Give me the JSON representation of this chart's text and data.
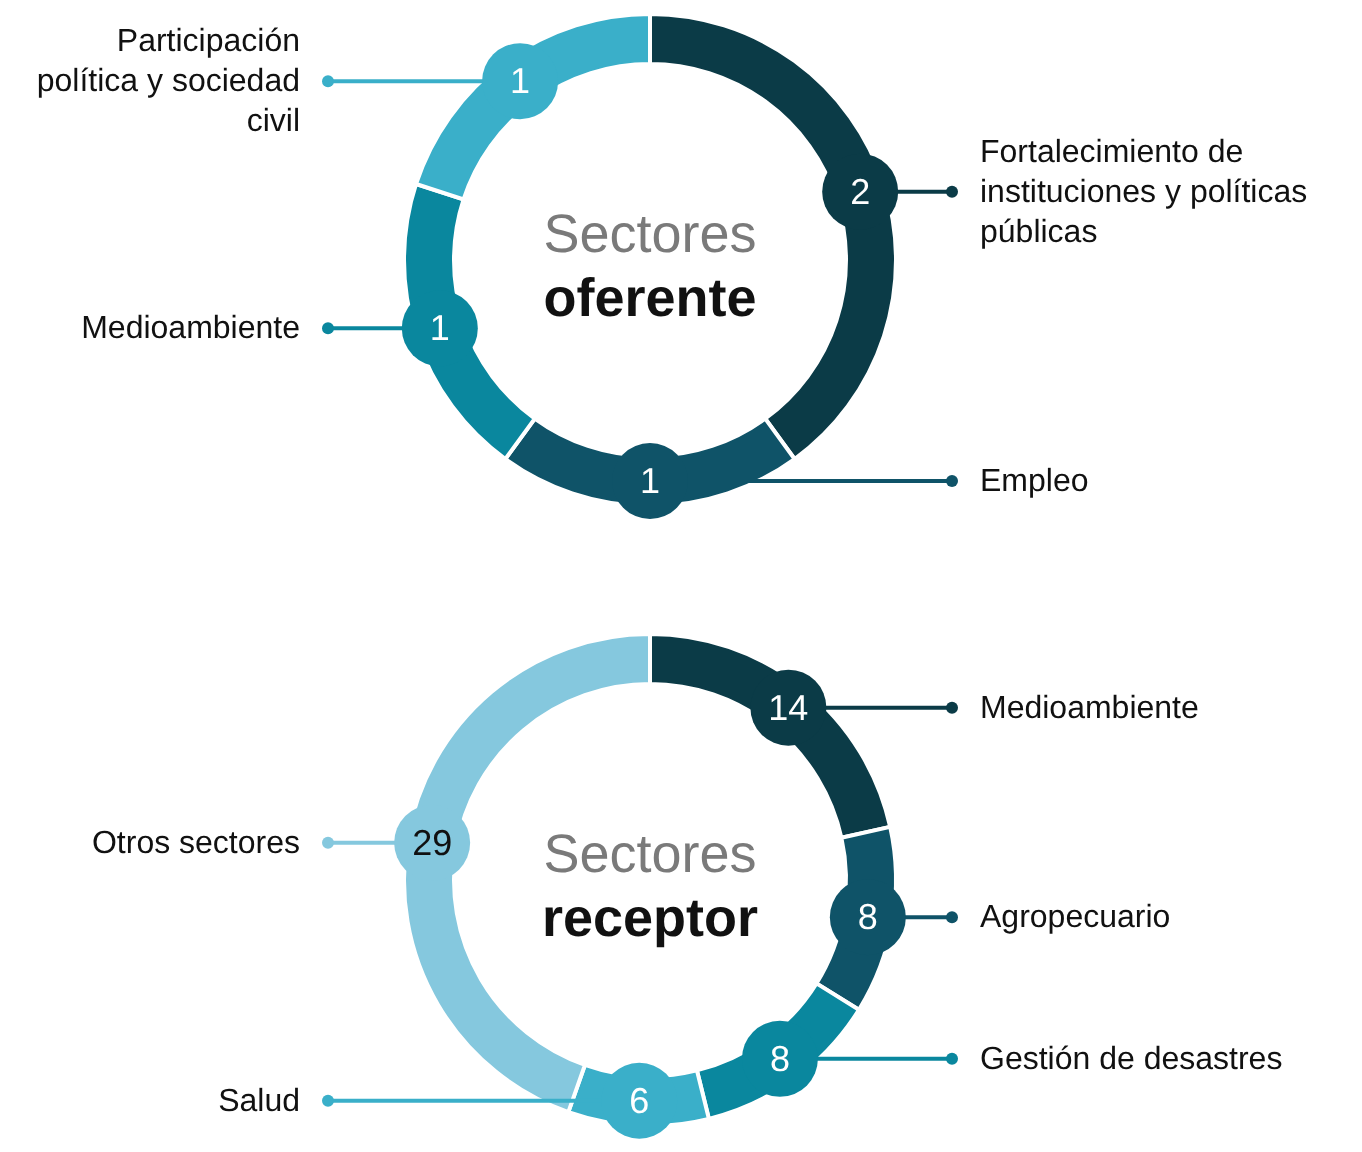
{
  "chart_data": [
    {
      "type": "donut",
      "title": "Sectores",
      "subtitle": "oferente",
      "categories": [
        "Fortalecimiento de instituciones y políticas públicas",
        "Empleo",
        "Medioambiente",
        "Participación política y sociedad civil"
      ],
      "values": [
        2,
        1,
        1,
        1
      ],
      "colors": [
        "#0b3b47",
        "#0f5368",
        "#0a879e",
        "#3aafc9"
      ],
      "data_labels": true,
      "legend": "right"
    },
    {
      "type": "donut",
      "title": "Sectores",
      "subtitle": "receptor",
      "categories": [
        "Medioambiente",
        "Agropecuario",
        "Gestión de desastres",
        "Salud",
        "Otros sectores"
      ],
      "values": [
        14,
        8,
        8,
        6,
        29
      ],
      "colors": [
        "#0b3b47",
        "#0f5368",
        "#0a879e",
        "#3aafc9",
        "#85c8de"
      ],
      "data_labels": true,
      "legend": "right"
    }
  ]
}
